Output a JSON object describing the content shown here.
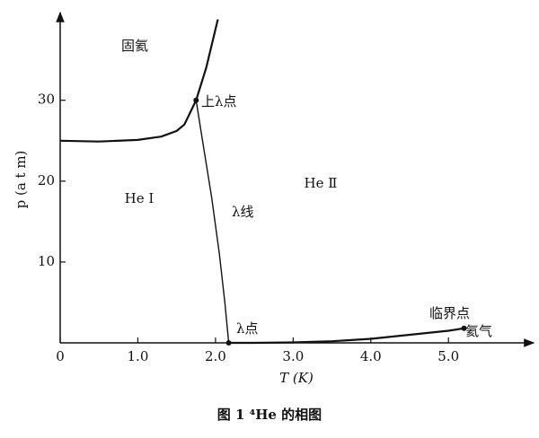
{
  "chart_data": {
    "type": "line",
    "caption": "图 1  ⁴He 的相图",
    "x_label": "T (K)",
    "y_label": "p (a t m)",
    "xlim": [
      0,
      6.05
    ],
    "ylim": [
      0,
      40.4
    ],
    "xticks": [
      0,
      {
        "value": 1,
        "label": "1.0"
      },
      {
        "value": 2,
        "label": "2.0"
      },
      {
        "value": 3,
        "label": "3.0"
      },
      {
        "value": 4,
        "label": "4.0"
      },
      {
        "value": 5,
        "label": "5.0"
      }
    ],
    "yticks": [
      10,
      20,
      30
    ],
    "color": "#111111",
    "series": [
      {
        "x": [
          0,
          0.5,
          1.0,
          1.3,
          1.5,
          1.6,
          1.75,
          1.88,
          2.03
        ],
        "values": [
          25,
          24.9,
          25.1,
          25.5,
          26.2,
          27,
          30,
          34,
          40
        ]
      },
      {
        "name": "λ线",
        "x": [
          1.75,
          1.85,
          1.95,
          2.05,
          2.12,
          2.17
        ],
        "values": [
          30,
          24,
          18,
          11,
          5,
          0
        ]
      },
      {
        "x": [
          2.17,
          2.5,
          3.0,
          3.5,
          4.0,
          4.5,
          5.0,
          5.2
        ],
        "values": [
          0,
          0,
          0.05,
          0.2,
          0.5,
          1.0,
          1.5,
          1.8
        ]
      }
    ],
    "points": {
      "x": [
        1.75,
        2.17,
        5.2
      ],
      "y": [
        30,
        0,
        1.8
      ]
    },
    "annotations": [
      "固氦",
      "He Ⅰ",
      "He Ⅱ",
      "上λ点",
      "λ点",
      "临界点",
      "氦气"
    ]
  }
}
